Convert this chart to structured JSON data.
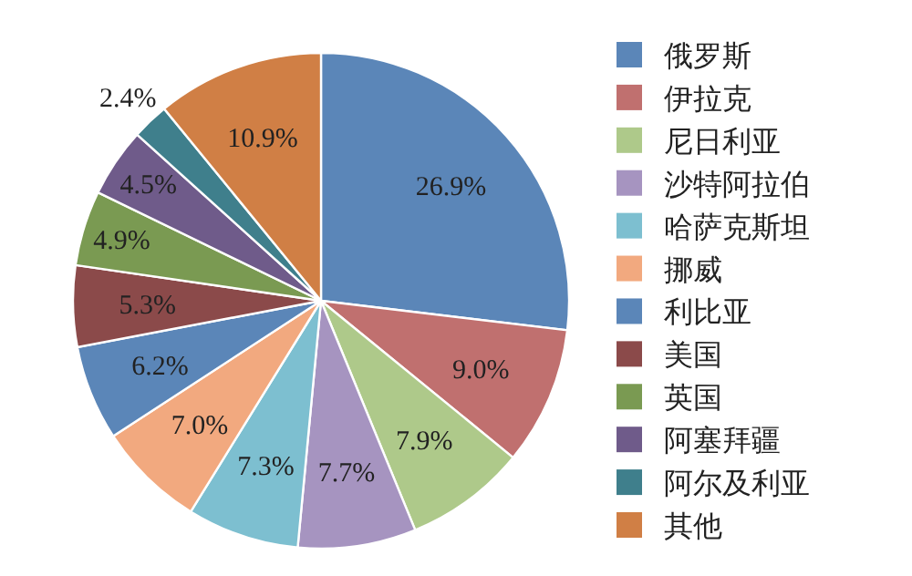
{
  "chart_data": {
    "type": "pie",
    "legend": "right",
    "categories": [
      "俄罗斯",
      "伊拉克",
      "尼日利亚",
      "沙特阿拉伯",
      "哈萨克斯坦",
      "挪威",
      "利比亚",
      "美国",
      "英国",
      "阿塞拜疆",
      "阿尔及利亚",
      "其他"
    ],
    "values": [
      26.9,
      9.0,
      7.9,
      7.7,
      7.3,
      7.0,
      6.2,
      5.3,
      4.9,
      4.5,
      2.4,
      10.9
    ],
    "value_labels": [
      "26.9%",
      "9.0%",
      "7.9%",
      "7.7%",
      "7.3%",
      "7.0%",
      "6.2%",
      "5.3%",
      "4.9%",
      "4.5%",
      "2.4%",
      "10.9%"
    ],
    "colors": [
      "#5b86b8",
      "#c0706f",
      "#aec98a",
      "#a694c0",
      "#7dbfd0",
      "#f2a97f",
      "#5b86b8",
      "#8b4a4a",
      "#7a9a52",
      "#6f5b8a",
      "#3f7f8c",
      "#d07f45"
    ]
  }
}
